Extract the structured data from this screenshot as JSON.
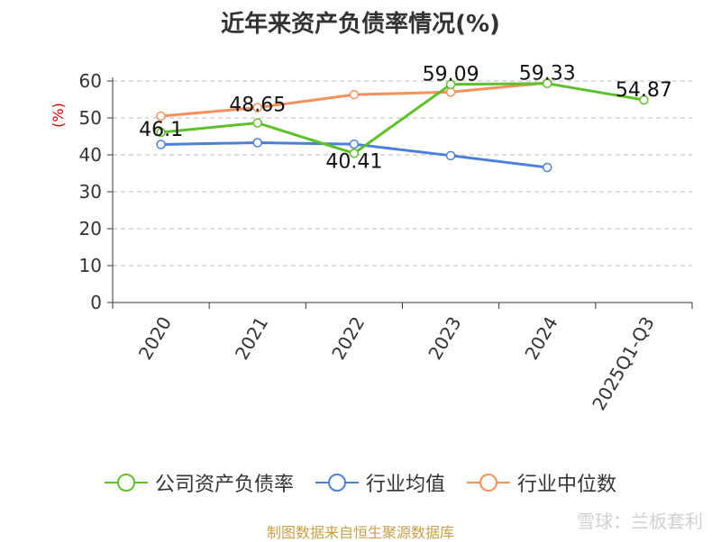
{
  "chart_data": {
    "type": "line",
    "title": "近年来资产负债率情况(%)",
    "ylabel": "(%)",
    "xlabel": "",
    "ylim": [
      0,
      60
    ],
    "yticks": [
      0,
      10,
      20,
      30,
      40,
      50,
      60
    ],
    "categories": [
      "2020",
      "2021",
      "2022",
      "2023",
      "2024",
      "2025Q1-Q3"
    ],
    "grid": true,
    "legend_position": "bottom",
    "series": [
      {
        "name": "公司资产负债率",
        "color": "#5ec02a",
        "values": [
          46.1,
          48.65,
          40.41,
          59.09,
          59.33,
          54.87
        ],
        "data_labels": [
          "46.1",
          "48.65",
          "40.41",
          "59.09",
          "59.33",
          "54.87"
        ]
      },
      {
        "name": "行业均值",
        "color": "#4a7fdc",
        "values": [
          42.8,
          43.3,
          42.9,
          39.8,
          36.6,
          null
        ]
      },
      {
        "name": "行业中位数",
        "color": "#f5905a",
        "values": [
          50.5,
          52.8,
          56.3,
          57.0,
          59.5,
          null
        ]
      }
    ]
  },
  "footer": {
    "source": "制图数据来自恒生聚源数据库",
    "watermark": "雪球：兰板套利"
  }
}
